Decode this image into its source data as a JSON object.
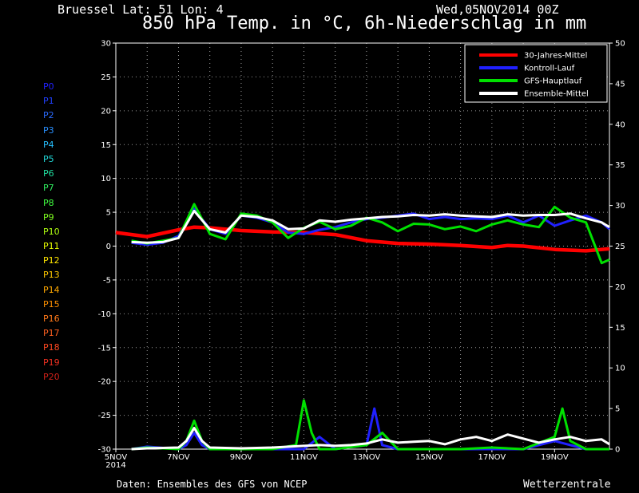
{
  "header": {
    "location": "Bruessel   Lat: 51 Lon: 4",
    "date": "Wed,05NOV2014 00Z",
    "title": "850 hPa Temp. in °C, 6h-Niederschlag in mm"
  },
  "footer": {
    "source": "Daten: Ensembles des GFS von NCEP",
    "brand": "Wetterzentrale"
  },
  "members": [
    {
      "label": "P0",
      "color": "#2020ff"
    },
    {
      "label": "P1",
      "color": "#2040ff"
    },
    {
      "label": "P2",
      "color": "#2a6bff"
    },
    {
      "label": "P3",
      "color": "#2a90ff"
    },
    {
      "label": "P4",
      "color": "#26c0ff"
    },
    {
      "label": "P5",
      "color": "#20d8d8"
    },
    {
      "label": "P6",
      "color": "#20e0a0"
    },
    {
      "label": "P7",
      "color": "#30f060"
    },
    {
      "label": "P8",
      "color": "#40ff40"
    },
    {
      "label": "P9",
      "color": "#80ff20"
    },
    {
      "label": "P10",
      "color": "#b0ff10"
    },
    {
      "label": "P11",
      "color": "#e8ff00"
    },
    {
      "label": "P12",
      "color": "#ffe600"
    },
    {
      "label": "P13",
      "color": "#ffc800"
    },
    {
      "label": "P14",
      "color": "#ffa800"
    },
    {
      "label": "P15",
      "color": "#ff9000"
    },
    {
      "label": "P16",
      "color": "#ff7818"
    },
    {
      "label": "P17",
      "color": "#ff6020"
    },
    {
      "label": "P18",
      "color": "#ff4820"
    },
    {
      "label": "P19",
      "color": "#f03020"
    },
    {
      "label": "P20",
      "color": "#d02018"
    }
  ],
  "chart_data": {
    "type": "line",
    "x_tick_labels": [
      "5NOV\n2014",
      "7NOV",
      "9NOV",
      "11NOV",
      "13NOV",
      "15NOV",
      "17NOV",
      "19NOV"
    ],
    "x_tick_days": [
      5,
      7,
      9,
      11,
      13,
      15,
      17,
      19
    ],
    "x_range_days": [
      5,
      20.75
    ],
    "y_left_range": [
      -30,
      30
    ],
    "y_left_ticks": [
      30,
      25,
      20,
      15,
      10,
      5,
      0,
      -5,
      -10,
      -15,
      -20,
      -25,
      -30
    ],
    "y_right_range": [
      0,
      50
    ],
    "y_right_ticks": [
      50,
      45,
      40,
      35,
      30,
      25,
      20,
      15,
      10,
      5,
      0
    ],
    "grid": true,
    "legend": {
      "placement": "top-right",
      "entries": [
        {
          "name": "30-Jahres-Mittel",
          "color": "#ff0000"
        },
        {
          "name": "Kontroll-Lauf",
          "color": "#2020ff"
        },
        {
          "name": "GFS-Hauptlauf",
          "color": "#00e000"
        },
        {
          "name": "Ensemble-Mittel",
          "color": "#ffffff"
        }
      ]
    },
    "series": [
      {
        "name": "30-Jahres-Mittel",
        "color": "#ff0000",
        "axis": "left",
        "x": [
          5,
          6,
          7,
          7.5,
          8,
          9,
          10,
          11,
          12,
          13,
          14,
          15,
          16,
          17,
          17.5,
          18,
          19,
          20,
          20.75
        ],
        "y": [
          2,
          1.4,
          2.4,
          2.8,
          2.7,
          2.3,
          2.1,
          2.0,
          1.7,
          0.8,
          0.4,
          0.3,
          0.1,
          -0.2,
          0.1,
          0,
          -0.5,
          -0.7,
          -0.4
        ]
      },
      {
        "name": "Kontroll-Lauf",
        "color": "#2020ff",
        "axis": "left",
        "x": [
          5.5,
          6,
          6.5,
          7,
          7.5,
          8,
          8.5,
          9,
          9.5,
          10,
          10.5,
          11,
          11.5,
          12,
          12.5,
          13,
          13.5,
          14,
          14.5,
          15,
          15.5,
          16,
          16.5,
          17,
          17.5,
          18,
          18.5,
          19,
          19.5,
          20,
          20.5,
          20.75
        ],
        "y": [
          0.5,
          0.2,
          0.5,
          1.5,
          5.5,
          2.5,
          1.8,
          4.5,
          4.2,
          3.5,
          2,
          1.8,
          2.4,
          2.8,
          3.5,
          4,
          4.2,
          4.5,
          4.8,
          4,
          4.3,
          4,
          4.1,
          4,
          4.5,
          3.5,
          4.5,
          3,
          3.8,
          4.5,
          3.5,
          2.5
        ]
      },
      {
        "name": "GFS-Hauptlauf",
        "color": "#00e000",
        "axis": "left",
        "x": [
          5.5,
          6,
          6.5,
          7,
          7.5,
          8,
          8.5,
          9,
          9.5,
          10,
          10.5,
          11,
          11.5,
          12,
          12.5,
          13,
          13.5,
          14,
          14.5,
          15,
          15.5,
          16,
          16.5,
          17,
          17.5,
          18,
          18.5,
          19,
          19.5,
          20,
          20.5,
          20.75
        ],
        "y": [
          0.8,
          0.4,
          0.8,
          1.2,
          6.2,
          1.8,
          1,
          4.8,
          4.5,
          3.5,
          1.2,
          2.7,
          3.6,
          2.5,
          3,
          4.2,
          3.5,
          2.2,
          3.3,
          3.2,
          2.5,
          2.9,
          2.2,
          3.2,
          3.8,
          3.2,
          2.8,
          5.8,
          4.2,
          3.5,
          -2.5,
          -2.0
        ]
      },
      {
        "name": "Ensemble-Mittel",
        "color": "#ffffff",
        "axis": "left",
        "x": [
          5.5,
          6,
          6.5,
          7,
          7.5,
          8,
          8.5,
          9,
          9.5,
          10,
          10.5,
          11,
          11.5,
          12,
          12.5,
          13,
          13.5,
          14,
          14.5,
          15,
          15.5,
          16,
          16.5,
          17,
          17.5,
          18,
          18.5,
          19,
          19.5,
          20,
          20.5,
          20.75
        ],
        "y": [
          0.6,
          0.5,
          0.6,
          1.2,
          5.2,
          2.5,
          2,
          4.5,
          4.3,
          3.8,
          2.5,
          2.6,
          3.8,
          3.6,
          3.9,
          4.1,
          4.3,
          4.4,
          4.6,
          4.5,
          4.7,
          4.5,
          4.4,
          4.3,
          4.7,
          4.5,
          4.6,
          4.6,
          4.8,
          4.1,
          3.5,
          2.8
        ]
      },
      {
        "name": "Kontroll-Lauf",
        "color": "#2020ff",
        "axis": "right",
        "x": [
          5.5,
          6,
          7,
          7.25,
          7.5,
          7.75,
          8,
          9,
          10,
          11,
          11.5,
          12,
          13,
          13.25,
          13.5,
          14,
          15,
          16,
          17,
          18,
          19,
          20,
          20.75
        ],
        "y": [
          0,
          0.3,
          0,
          0.5,
          2,
          0.5,
          0,
          0,
          0,
          0,
          1.5,
          0,
          0.5,
          5,
          0.5,
          0,
          0,
          0,
          0,
          0,
          1,
          0,
          0
        ]
      },
      {
        "name": "GFS-Hauptlauf",
        "color": "#00e000",
        "axis": "right",
        "x": [
          5.5,
          6,
          7,
          7.25,
          7.5,
          7.75,
          8,
          9,
          10,
          10.75,
          11,
          11.25,
          11.5,
          12,
          13,
          13.5,
          14,
          15,
          16,
          17,
          18,
          19,
          19.25,
          19.5,
          20,
          20.75
        ],
        "y": [
          0,
          0.2,
          0,
          1,
          3.5,
          1,
          0,
          0,
          0,
          0.5,
          6,
          2,
          0,
          0,
          0.5,
          2,
          0,
          0,
          0,
          0.2,
          0,
          1.5,
          5,
          1,
          0,
          0
        ]
      },
      {
        "name": "Ensemble-Mittel",
        "color": "#ffffff",
        "axis": "right",
        "x": [
          5.5,
          6,
          7,
          7.25,
          7.5,
          7.75,
          8,
          9,
          10,
          11,
          11.5,
          12,
          12.5,
          13,
          13.5,
          14,
          14.5,
          15,
          15.5,
          16,
          16.5,
          17,
          17.5,
          18,
          18.5,
          19,
          19.5,
          20,
          20.5,
          20.75
        ],
        "y": [
          0,
          0.1,
          0.2,
          1,
          2.6,
          1,
          0.2,
          0.1,
          0.2,
          0.4,
          0.5,
          0.4,
          0.5,
          0.7,
          1.2,
          0.8,
          0.9,
          1,
          0.6,
          1.2,
          1.5,
          1,
          1.8,
          1.3,
          0.8,
          1.2,
          1.5,
          1,
          1.2,
          0.6
        ]
      }
    ]
  }
}
